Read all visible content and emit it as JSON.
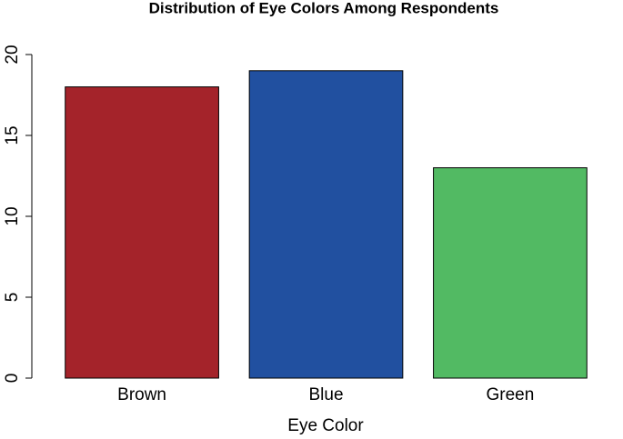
{
  "chart_data": {
    "type": "bar",
    "title": "Distribution of Eye Colors Among Respondents",
    "x_label": "Eye Color",
    "categories": [
      "Brown",
      "Blue",
      "Green"
    ],
    "values": [
      18,
      19,
      13
    ],
    "colors": [
      "#A4232A",
      "#2150A0",
      "#52BA63"
    ],
    "ylim": [
      0,
      20
    ],
    "yticks": [
      0,
      5,
      10,
      15,
      20
    ],
    "grid": false
  }
}
